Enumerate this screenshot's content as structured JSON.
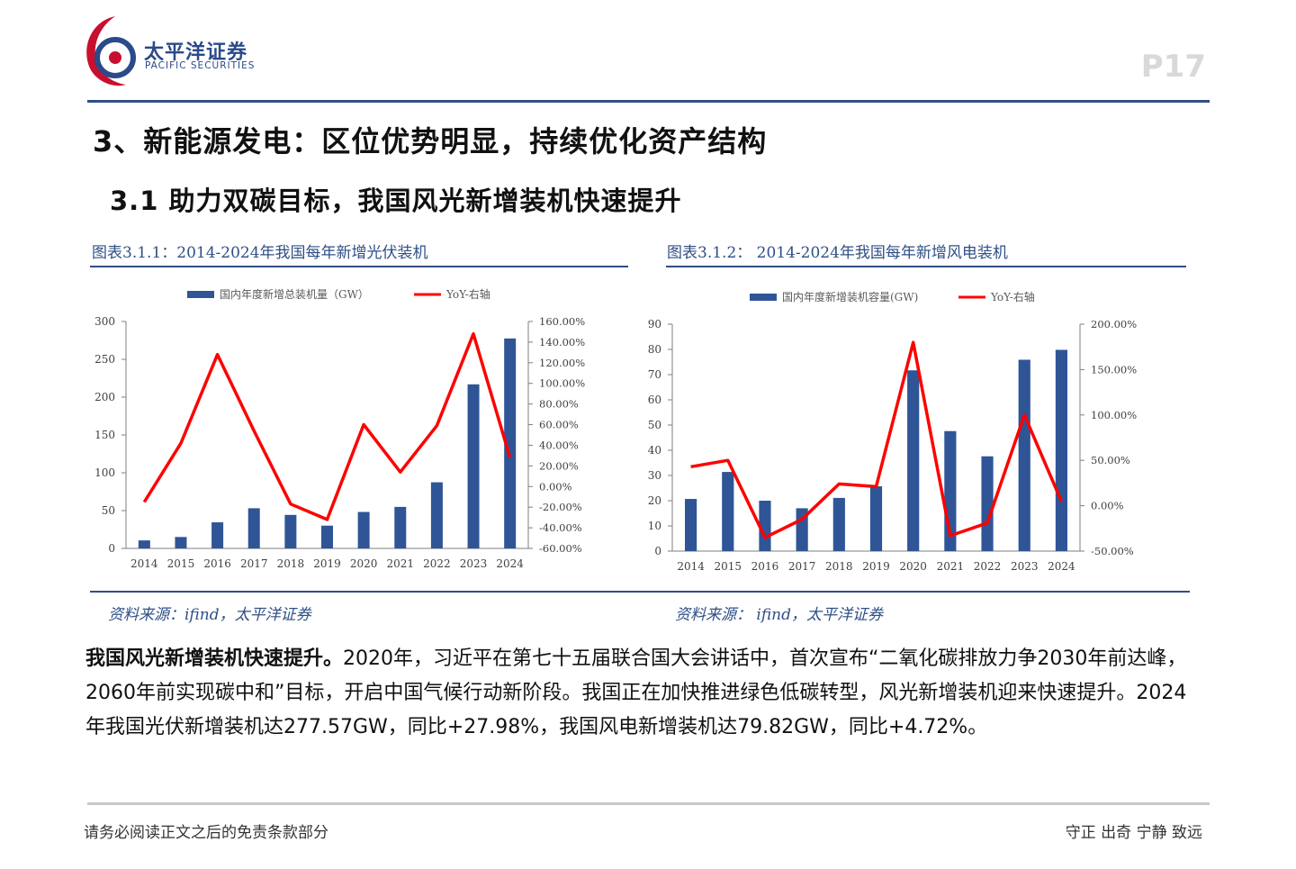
{
  "header": {
    "brand_cn": "太平洋证券",
    "brand_en": "PACIFIC SECURITIES",
    "page_number": "P17"
  },
  "headings": {
    "h1": "3、新能源发电：区位优势明显，持续优化资产结构",
    "h2": "3.1 助力双碳目标，我国风光新增装机快速提升"
  },
  "figures": [
    {
      "title": "图表3.1.1：2014-2024年我国每年新增光伏装机",
      "source": "资料来源：ifind，太平洋证券"
    },
    {
      "title": "图表3.1.2： 2014-2024年我国每年新增风电装机",
      "source": "资料来源： ifind，太平洋证券"
    }
  ],
  "chart_data": [
    {
      "type": "bar",
      "categories": [
        "2014",
        "2015",
        "2016",
        "2017",
        "2018",
        "2019",
        "2020",
        "2021",
        "2022",
        "2023",
        "2024"
      ],
      "series": [
        {
          "name": "国内年度新增总装机量（GW）",
          "type": "bar",
          "axis": "left",
          "color": "#2f5597",
          "values": [
            10.6,
            15.1,
            34.5,
            53.1,
            44.3,
            30.1,
            48.2,
            54.9,
            87.4,
            216.9,
            277.57
          ]
        },
        {
          "name": "YoY-右轴",
          "type": "line",
          "axis": "right",
          "color": "#ff0000",
          "values": [
            -15.0,
            42.0,
            128.0,
            54.0,
            -17.0,
            -32.0,
            60.0,
            14.0,
            59.0,
            148.0,
            27.98
          ]
        }
      ],
      "ylim_left": [
        0,
        300
      ],
      "yticks_left": [
        "0",
        "50",
        "100",
        "150",
        "200",
        "250",
        "300"
      ],
      "ylim_right": [
        -60,
        160
      ],
      "yticks_right": [
        "-60.00%",
        "-40.00%",
        "-20.00%",
        "0.00%",
        "20.00%",
        "40.00%",
        "60.00%",
        "80.00%",
        "100.00%",
        "120.00%",
        "140.00%",
        "160.00%"
      ],
      "legend": "top"
    },
    {
      "type": "bar",
      "categories": [
        "2014",
        "2015",
        "2016",
        "2017",
        "2018",
        "2019",
        "2020",
        "2021",
        "2022",
        "2023",
        "2024"
      ],
      "series": [
        {
          "name": "国内年度新增装机容量(GW)",
          "type": "bar",
          "axis": "left",
          "color": "#2f5597",
          "values": [
            20.7,
            31.4,
            20.0,
            17.0,
            21.1,
            25.7,
            71.7,
            47.6,
            37.6,
            75.9,
            79.82
          ]
        },
        {
          "name": "YoY-右轴",
          "type": "line",
          "axis": "right",
          "color": "#ff0000",
          "values": [
            43.0,
            50.0,
            -35.0,
            -15.0,
            24.0,
            21.0,
            180.0,
            -33.0,
            -19.0,
            100.0,
            4.72
          ]
        }
      ],
      "ylim_left": [
        0,
        90
      ],
      "yticks_left": [
        "0",
        "10",
        "20",
        "30",
        "40",
        "50",
        "60",
        "70",
        "80",
        "90"
      ],
      "ylim_right": [
        -50,
        200
      ],
      "yticks_right": [
        "-50.00%",
        "0.00%",
        "50.00%",
        "100.00%",
        "150.00%",
        "200.00%"
      ],
      "legend": "top"
    }
  ],
  "body": {
    "lead": "我国风光新增装机快速提升。",
    "text": "2020年，习近平在第七十五届联合国大会讲话中，首次宣布“二氧化碳排放力争2030年前达峰，2060年前实现碳中和”目标，开启中国气候行动新阶段。我国正在加快推进绿色低碳转型，风光新增装机迎来快速提升。2024年我国光伏新增装机达277.57GW，同比+27.98%，我国风电新增装机达79.82GW，同比+4.72%。"
  },
  "footer": {
    "left": "请务必阅读正文之后的免责条款部分",
    "right": "守正 出奇 宁静 致远"
  },
  "colors": {
    "accent": "#2f4f86",
    "bar": "#2f5597",
    "line": "#ff0000",
    "logo_red": "#c8102e"
  }
}
